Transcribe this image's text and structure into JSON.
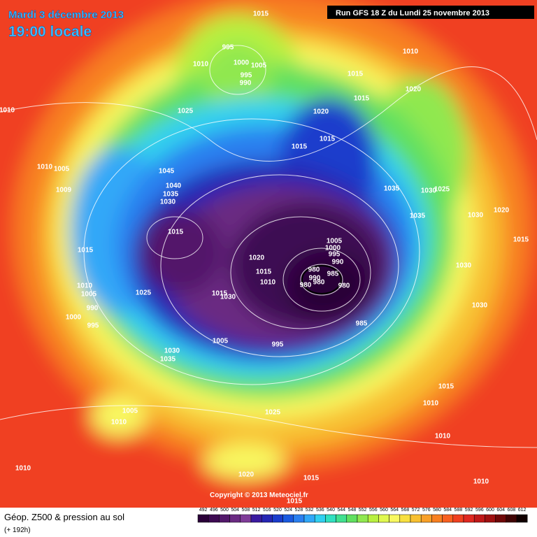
{
  "header": {
    "date": "Mardi 3 décembre 2013",
    "time": "19:00 locale",
    "run": "Run GFS 18 Z du Lundi 25 novembre 2013"
  },
  "footer": {
    "title": "Géop. Z500 & pression au sol",
    "lead": "(+ 192h)",
    "copyright": "Copyright © 2013 Meteociel.fr"
  },
  "legend": {
    "ticks": [
      492,
      496,
      500,
      504,
      508,
      512,
      516,
      520,
      524,
      528,
      532,
      536,
      540,
      544,
      548,
      552,
      556,
      560,
      564,
      568,
      572,
      576,
      580,
      584,
      588,
      592,
      596,
      600,
      604,
      608,
      612
    ],
    "colors": [
      "#2a0038",
      "#3d0a52",
      "#52186a",
      "#6a2a82",
      "#7f3c98",
      "#3a1aa0",
      "#2626b4",
      "#1a3ccc",
      "#1a5ae0",
      "#2a80f0",
      "#30a8f8",
      "#30d0f0",
      "#30e0c0",
      "#40e090",
      "#60e060",
      "#90e850",
      "#b8f040",
      "#e0f850",
      "#f8f860",
      "#f8e040",
      "#f8c030",
      "#f8a028",
      "#f88020",
      "#f86020",
      "#f04020",
      "#e02820",
      "#c01818",
      "#a01010",
      "#700808",
      "#400404",
      "#100000"
    ]
  },
  "isobar_labels": [
    "1015",
    "995",
    "1000",
    "1005",
    "995",
    "990",
    "1010",
    "1010",
    "1015",
    "1020",
    "1015",
    "1020",
    "1015",
    "1015",
    "1025",
    "1010",
    "1010",
    "1005",
    "1009",
    "1045",
    "1040",
    "1035",
    "1030",
    "1015",
    "1035",
    "1030",
    "1025",
    "1035",
    "1030",
    "1020",
    "1015",
    "1030",
    "1030",
    "1005",
    "1000",
    "995",
    "990",
    "980",
    "985",
    "990",
    "980",
    "980",
    "980",
    "985",
    "1020",
    "1015",
    "1010",
    "1015",
    "1030",
    "1015",
    "1010",
    "1005",
    "990",
    "1000",
    "995",
    "1025",
    "1005",
    "995",
    "1030",
    "1035",
    "1015",
    "1010",
    "1005",
    "1010",
    "1025",
    "1010",
    "1010",
    "1020",
    "1015",
    "1010",
    "1015"
  ]
}
